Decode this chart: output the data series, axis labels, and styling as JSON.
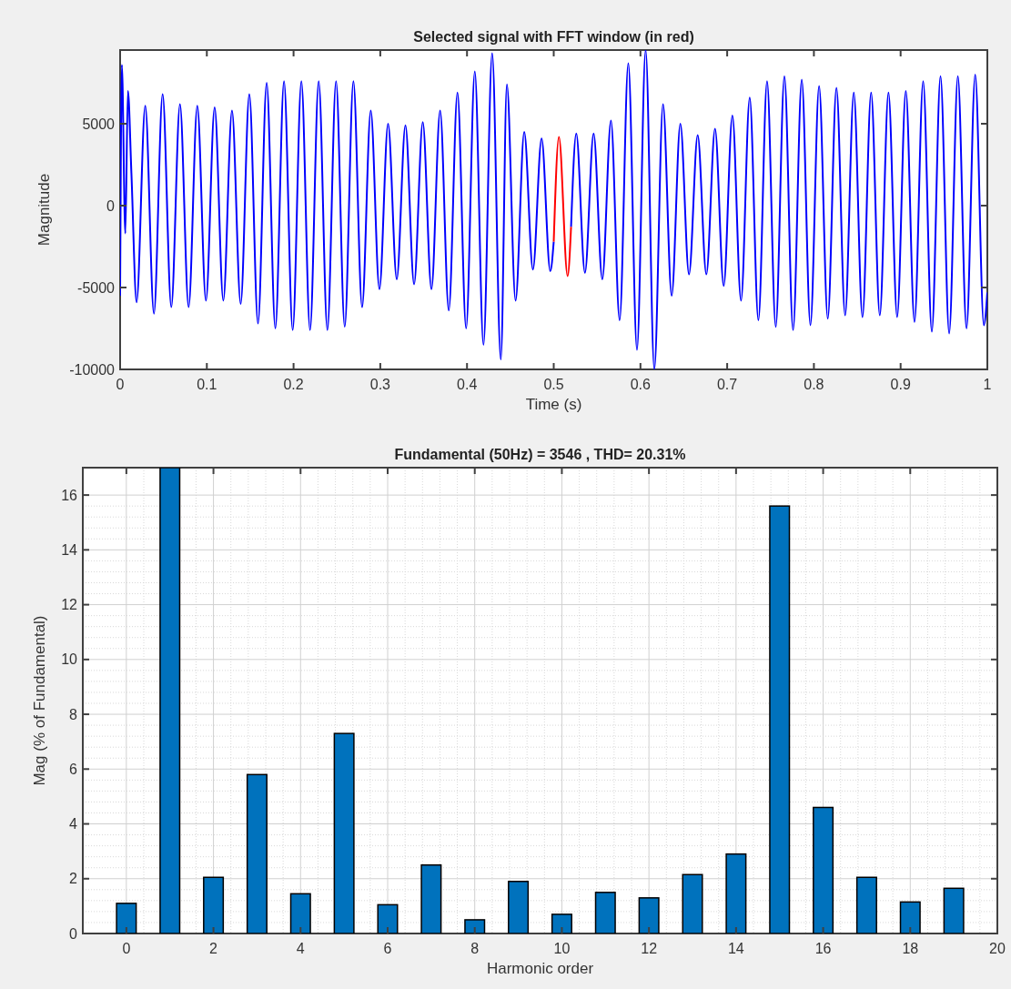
{
  "chart_data": [
    {
      "type": "line",
      "title": "Selected signal with FFT window (in red)",
      "xlabel": "Time (s)",
      "ylabel": "Magnitude",
      "xlim": [
        0,
        1
      ],
      "ylim": [
        -10000,
        9500
      ],
      "xticks": [
        0,
        0.1,
        0.2,
        0.3,
        0.4,
        0.5,
        0.6,
        0.7,
        0.8,
        0.9,
        1
      ],
      "yticks": [
        -10000,
        -5000,
        0,
        5000
      ],
      "grid": false,
      "line_style": "solid",
      "marker": "none",
      "series": [
        {
          "color": "#0000ff",
          "x": [
            0,
            0.002,
            0.006,
            0.009,
            0.013,
            0.019,
            0.029,
            0.039,
            0.049,
            0.059,
            0.069,
            0.079,
            0.089,
            0.099,
            0.109,
            0.119,
            0.129,
            0.139,
            0.149,
            0.159,
            0.169,
            0.179,
            0.189,
            0.199,
            0.209,
            0.219,
            0.229,
            0.239,
            0.249,
            0.259,
            0.269,
            0.279,
            0.289,
            0.299,
            0.309,
            0.319,
            0.329,
            0.339,
            0.349,
            0.359,
            0.369,
            0.379,
            0.389,
            0.399,
            0.409,
            0.419,
            0.429,
            0.439,
            0.446,
            0.456,
            0.466,
            0.476,
            0.486,
            0.496,
            0.5,
            0.506,
            0.516,
            0.52,
            0.526,
            0.536,
            0.546,
            0.556,
            0.566,
            0.576,
            0.586,
            0.596,
            0.606,
            0.616,
            0.626,
            0.636,
            0.646,
            0.656,
            0.666,
            0.676,
            0.686,
            0.696,
            0.706,
            0.716,
            0.726,
            0.736,
            0.746,
            0.756,
            0.766,
            0.776,
            0.786,
            0.796,
            0.806,
            0.816,
            0.826,
            0.836,
            0.846,
            0.856,
            0.866,
            0.876,
            0.886,
            0.896,
            0.906,
            0.916,
            0.926,
            0.936,
            0.946,
            0.956,
            0.966,
            0.976,
            0.986,
            0.996,
            1
          ],
          "values": [
            -5500,
            8600,
            -1700,
            7000,
            2000,
            -5900,
            6100,
            -6600,
            6800,
            -6200,
            6200,
            -6200,
            6100,
            -5800,
            6000,
            -5800,
            5800,
            -6000,
            6800,
            -7200,
            7500,
            -7500,
            7600,
            -7600,
            7600,
            -7600,
            7600,
            -7600,
            7600,
            -7400,
            7600,
            -6200,
            5800,
            -5100,
            5000,
            -4500,
            4900,
            -4800,
            5100,
            -5100,
            5800,
            -6400,
            6900,
            -7500,
            8200,
            -8500,
            9300,
            -9400,
            7400,
            -5800,
            4500,
            -3900,
            4100,
            -4000,
            -2200,
            null,
            null,
            -1300,
            4400,
            -4100,
            4400,
            -4500,
            5200,
            -7000,
            8700,
            -8800,
            9500,
            -10000,
            6200,
            -5500,
            5000,
            -4200,
            4300,
            -4200,
            4700,
            -4900,
            5500,
            -5800,
            6600,
            -7000,
            7600,
            -7400,
            7900,
            -7600,
            7700,
            -7300,
            7300,
            -6900,
            7200,
            -6700,
            6900,
            -6800,
            6900,
            -6700,
            6900,
            -6800,
            7000,
            -7100,
            7600,
            -7700,
            7900,
            -7800,
            7900,
            -7500,
            8000,
            -7300,
            -5300
          ]
        },
        {
          "color": "#ff0000",
          "x": [
            0.5,
            0.506,
            0.516,
            0.52
          ],
          "values": [
            -2200,
            4200,
            -4300,
            -1300
          ]
        }
      ]
    },
    {
      "type": "bar",
      "title": "Fundamental (50Hz) = 3546 , THD= 20.31%",
      "xlabel": "Harmonic order",
      "ylabel": "Mag (% of Fundamental)",
      "xlim": [
        -1,
        20
      ],
      "ylim": [
        0,
        17
      ],
      "xticks": [
        0,
        2,
        4,
        6,
        8,
        10,
        12,
        14,
        16,
        18,
        20
      ],
      "yticks": [
        0,
        2,
        4,
        6,
        8,
        10,
        12,
        14,
        16
      ],
      "grid": true,
      "x": [
        0,
        1,
        2,
        3,
        4,
        5,
        6,
        7,
        8,
        9,
        10,
        11,
        12,
        13,
        14,
        15,
        16,
        17,
        18,
        19
      ],
      "series": [
        {
          "color": "#0072bd",
          "values": [
            1.1,
            17,
            2.05,
            5.8,
            1.45,
            7.3,
            1.05,
            2.5,
            0.5,
            1.9,
            0.7,
            1.5,
            1.3,
            2.15,
            2.9,
            15.6,
            4.6,
            2.05,
            1.15,
            1.65
          ]
        }
      ]
    }
  ]
}
